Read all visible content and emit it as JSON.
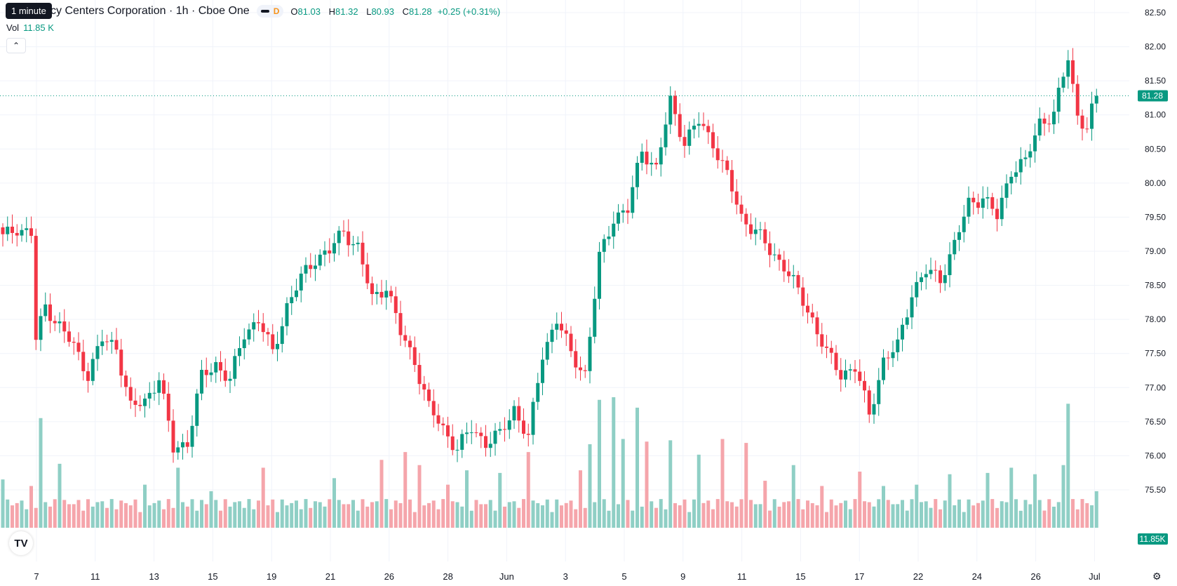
{
  "legend": {
    "tooltip": "1 minute",
    "title": "cy Centers Corporation · 1h · Cboe One",
    "interval_badge": "D",
    "o_label": "O",
    "o_value": "81.03",
    "h_label": "H",
    "h_value": "81.32",
    "l_label": "L",
    "l_value": "80.93",
    "c_label": "C",
    "c_value": "81.28",
    "change": "+0.25 (+0.31%)"
  },
  "volume": {
    "label": "Vol",
    "value": "11.85 K",
    "badge": "11.85K"
  },
  "price_axis": {
    "ticks": [
      "82.50",
      "82.00",
      "81.50",
      "81.00",
      "80.50",
      "80.00",
      "79.50",
      "79.00",
      "78.50",
      "78.00",
      "77.50",
      "77.00",
      "76.50",
      "76.00",
      "75.50"
    ],
    "last_price": "81.28"
  },
  "time_axis": {
    "labels": [
      "7",
      "11",
      "13",
      "15",
      "19",
      "21",
      "26",
      "28",
      "Jun",
      "3",
      "5",
      "9",
      "11",
      "15",
      "17",
      "22",
      "24",
      "26",
      "Jul"
    ]
  },
  "colors": {
    "up": "#089981",
    "down": "#f23645",
    "up_vol": "#8fcfc5",
    "down_vol": "#f5a5ab"
  },
  "icons": {
    "logo": "tradingview-logo-icon",
    "settings": "gear-icon",
    "collapse": "chevron-up-icon"
  },
  "chart_data": {
    "type": "candlestick",
    "ylim": [
      75.3,
      82.6
    ],
    "series": [
      {
        "anchors": [
          [
            0,
            79.2
          ],
          [
            3,
            79.35
          ],
          [
            6,
            79.25
          ],
          [
            7,
            77.7
          ],
          [
            9,
            78.2
          ],
          [
            12,
            77.9
          ],
          [
            15,
            77.6
          ],
          [
            18,
            77.2
          ],
          [
            21,
            77.7
          ],
          [
            24,
            77.6
          ],
          [
            27,
            76.7
          ],
          [
            30,
            76.8
          ],
          [
            33,
            77.15
          ],
          [
            36,
            76.1
          ],
          [
            39,
            76.2
          ],
          [
            42,
            77.15
          ],
          [
            45,
            77.35
          ],
          [
            48,
            77.1
          ],
          [
            51,
            77.8
          ],
          [
            54,
            78.0
          ],
          [
            57,
            77.5
          ],
          [
            60,
            78.2
          ],
          [
            63,
            78.6
          ],
          [
            66,
            78.9
          ],
          [
            69,
            79.0
          ],
          [
            72,
            79.3
          ],
          [
            75,
            79.05
          ],
          [
            78,
            78.3
          ],
          [
            81,
            78.5
          ],
          [
            84,
            77.8
          ],
          [
            87,
            77.4
          ],
          [
            90,
            76.7
          ],
          [
            93,
            76.4
          ],
          [
            96,
            76.1
          ],
          [
            99,
            76.4
          ],
          [
            102,
            76.2
          ],
          [
            105,
            76.3
          ],
          [
            108,
            76.7
          ],
          [
            111,
            76.25
          ],
          [
            114,
            77.5
          ],
          [
            117,
            78.0
          ],
          [
            120,
            77.5
          ],
          [
            123,
            77.2
          ],
          [
            126,
            78.9
          ],
          [
            129,
            79.5
          ],
          [
            132,
            79.6
          ],
          [
            135,
            80.5
          ],
          [
            138,
            80.2
          ],
          [
            141,
            81.2
          ],
          [
            144,
            80.6
          ],
          [
            147,
            80.9
          ],
          [
            150,
            80.6
          ],
          [
            153,
            80.1
          ],
          [
            156,
            79.5
          ],
          [
            159,
            79.3
          ],
          [
            162,
            79.0
          ],
          [
            165,
            78.8
          ],
          [
            168,
            78.4
          ],
          [
            171,
            78.0
          ],
          [
            174,
            77.5
          ],
          [
            177,
            77.2
          ],
          [
            180,
            77.3
          ],
          [
            183,
            76.6
          ],
          [
            186,
            77.4
          ],
          [
            189,
            77.6
          ],
          [
            192,
            78.4
          ],
          [
            195,
            78.7
          ],
          [
            198,
            78.6
          ],
          [
            201,
            79.1
          ],
          [
            204,
            79.7
          ],
          [
            207,
            79.8
          ],
          [
            210,
            79.5
          ],
          [
            213,
            80.2
          ],
          [
            216,
            80.3
          ],
          [
            219,
            80.9
          ],
          [
            222,
            81.0
          ],
          [
            225,
            81.85
          ],
          [
            227,
            81.0
          ],
          [
            229,
            80.8
          ],
          [
            231,
            81.28
          ]
        ],
        "volume_levels": [
          [
            0,
            0.37
          ],
          [
            6,
            0.32
          ],
          [
            8,
            0.84
          ],
          [
            12,
            0.49
          ],
          [
            30,
            0.33
          ],
          [
            37,
            0.46
          ],
          [
            44,
            0.28
          ],
          [
            55,
            0.46
          ],
          [
            70,
            0.38
          ],
          [
            80,
            0.52
          ],
          [
            85,
            0.58
          ],
          [
            88,
            0.48
          ],
          [
            94,
            0.33
          ],
          [
            98,
            0.44
          ],
          [
            105,
            0.42
          ],
          [
            111,
            0.58
          ],
          [
            122,
            0.44
          ],
          [
            124,
            0.64
          ],
          [
            126,
            0.98
          ],
          [
            129,
            1.0
          ],
          [
            131,
            0.68
          ],
          [
            134,
            0.92
          ],
          [
            136,
            0.66
          ],
          [
            141,
            0.67
          ],
          [
            147,
            0.56
          ],
          [
            152,
            0.68
          ],
          [
            157,
            0.65
          ],
          [
            161,
            0.36
          ],
          [
            167,
            0.48
          ],
          [
            173,
            0.32
          ],
          [
            181,
            0.43
          ],
          [
            186,
            0.32
          ],
          [
            193,
            0.33
          ],
          [
            200,
            0.41
          ],
          [
            208,
            0.42
          ],
          [
            213,
            0.46
          ],
          [
            218,
            0.41
          ],
          [
            224,
            0.48
          ],
          [
            225,
            0.95
          ],
          [
            228,
            0.22
          ],
          [
            231,
            0.28
          ]
        ]
      }
    ]
  }
}
